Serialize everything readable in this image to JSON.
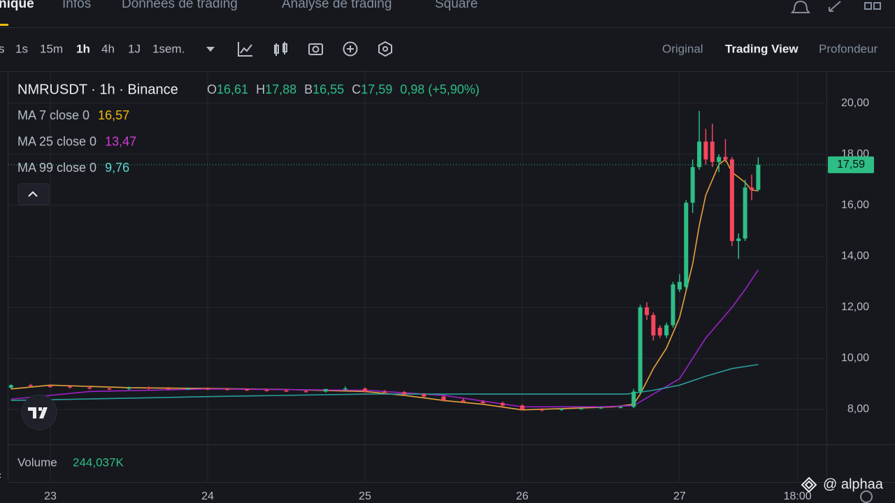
{
  "nav": {
    "tabs": [
      "nique",
      "Infos",
      "Données de trading",
      "Analyse de trading",
      "Square"
    ]
  },
  "toolbar": {
    "intervals": [
      "s",
      "1s",
      "15m",
      "1h",
      "4h",
      "1J",
      "1sem."
    ],
    "views": [
      "Original",
      "Trading View",
      "Profondeur"
    ]
  },
  "legend": {
    "symbol": "NMRUSDT · 1h · Binance",
    "ohlc": [
      {
        "key": "O",
        "value": "16,61"
      },
      {
        "key": "H",
        "value": "17,88"
      },
      {
        "key": "B",
        "value": "16,55"
      },
      {
        "key": "C",
        "value": "17,59"
      }
    ],
    "change": "0,98 (+5,90%)"
  },
  "chart_data": {
    "type": "candlestick",
    "xlim": [
      -6.4,
      118.2
    ],
    "ylim": [
      6.63,
      21.23
    ],
    "xticks": [
      {
        "value": 0,
        "label": "23"
      },
      {
        "value": 24,
        "label": "24"
      },
      {
        "value": 48,
        "label": "25"
      },
      {
        "value": 72,
        "label": "26"
      },
      {
        "value": 96,
        "label": "27"
      },
      {
        "value": 114,
        "label": "18:00"
      }
    ],
    "yticks": [
      {
        "value": 8,
        "label": "8,00"
      },
      {
        "value": 10,
        "label": "10,00"
      },
      {
        "value": 12,
        "label": "12,00"
      },
      {
        "value": 14,
        "label": "14,00"
      },
      {
        "value": 16,
        "label": "16,00"
      },
      {
        "value": 18,
        "label": "18,00"
      },
      {
        "value": 20,
        "label": "20,00"
      }
    ],
    "grid": true,
    "up_color": "#2ebd85",
    "down_color": "#f6465d",
    "x": [
      -6,
      -3,
      0,
      3,
      6,
      9,
      12,
      15,
      18,
      21,
      24,
      27,
      30,
      33,
      36,
      39,
      42,
      45,
      48,
      51,
      54,
      57,
      60,
      63,
      66,
      69,
      72,
      75,
      78,
      81,
      84,
      87,
      89,
      90,
      91,
      92,
      93,
      94,
      95,
      96,
      97,
      98,
      99,
      100,
      101,
      102,
      103,
      104,
      105,
      106,
      107,
      108
    ],
    "open": [
      8.85,
      8.95,
      8.92,
      8.9,
      8.86,
      8.82,
      8.8,
      8.85,
      8.83,
      8.8,
      8.82,
      8.8,
      8.78,
      8.76,
      8.74,
      8.72,
      8.7,
      8.8,
      8.82,
      8.7,
      8.68,
      8.6,
      8.5,
      8.35,
      8.3,
      8.25,
      8.15,
      8.0,
      7.98,
      8.02,
      8.05,
      8.08,
      8.1,
      8.7,
      12.0,
      11.7,
      11.2,
      10.9,
      11.3,
      12.7,
      12.8,
      16.1,
      17.5,
      18.5,
      18.5,
      17.7,
      17.9,
      17.8,
      14.6,
      14.7,
      16.7,
      16.61
    ],
    "high": [
      8.98,
      9.0,
      8.98,
      8.95,
      8.9,
      8.88,
      8.9,
      8.9,
      8.88,
      8.86,
      8.86,
      8.84,
      8.82,
      8.8,
      8.78,
      8.76,
      8.8,
      8.9,
      8.86,
      8.76,
      8.72,
      8.64,
      8.55,
      8.42,
      8.36,
      8.3,
      8.2,
      8.05,
      8.04,
      8.08,
      8.1,
      8.14,
      8.8,
      12.1,
      12.2,
      11.8,
      11.3,
      11.4,
      13.0,
      13.3,
      16.2,
      17.8,
      19.7,
      19.0,
      19.2,
      18.0,
      18.6,
      17.9,
      14.9,
      17.0,
      17.2,
      17.88
    ],
    "low": [
      8.8,
      8.88,
      8.85,
      8.82,
      8.78,
      8.76,
      8.76,
      8.78,
      8.76,
      8.76,
      8.76,
      8.74,
      8.72,
      8.7,
      8.68,
      8.66,
      8.66,
      8.74,
      8.66,
      8.62,
      8.56,
      8.46,
      8.3,
      8.26,
      8.2,
      8.1,
      7.96,
      7.92,
      7.94,
      7.98,
      8.02,
      8.04,
      8.05,
      8.6,
      11.5,
      10.7,
      10.8,
      10.8,
      11.2,
      12.6,
      12.7,
      15.7,
      17.4,
      17.6,
      17.5,
      17.3,
      17.7,
      14.4,
      13.9,
      14.6,
      16.2,
      16.55
    ],
    "close": [
      8.95,
      8.92,
      8.9,
      8.86,
      8.82,
      8.8,
      8.85,
      8.83,
      8.8,
      8.82,
      8.8,
      8.78,
      8.76,
      8.74,
      8.72,
      8.7,
      8.8,
      8.82,
      8.7,
      8.68,
      8.6,
      8.5,
      8.35,
      8.3,
      8.25,
      8.15,
      8.0,
      7.98,
      8.02,
      8.05,
      8.08,
      8.1,
      8.7,
      12.0,
      11.7,
      10.9,
      10.9,
      11.3,
      12.9,
      13.0,
      16.1,
      17.5,
      18.5,
      17.8,
      17.7,
      17.9,
      17.8,
      14.6,
      14.7,
      16.7,
      16.6,
      17.59
    ],
    "last_price": {
      "value": 17.59,
      "label": "17,59"
    },
    "series": [
      {
        "name": "MA 7 close 0",
        "value_label": "16,57",
        "color": "#e8a33d",
        "label_color": "#f0b90b",
        "x": [
          -6,
          0,
          12,
          24,
          36,
          48,
          54,
          60,
          66,
          72,
          78,
          86,
          89,
          90,
          92,
          94,
          96,
          98,
          99,
          100,
          102,
          103,
          104,
          106,
          107,
          108
        ],
        "values": [
          8.8,
          8.95,
          8.85,
          8.82,
          8.78,
          8.7,
          8.55,
          8.35,
          8.2,
          7.98,
          8.03,
          8.1,
          8.2,
          8.6,
          9.6,
          10.4,
          11.6,
          13.7,
          15.2,
          16.4,
          17.6,
          17.8,
          17.3,
          16.9,
          16.6,
          16.57
        ]
      },
      {
        "name": "MA 25 close 0",
        "value_label": "13,47",
        "color": "#a020c8",
        "label_color": "#d63ad6",
        "x": [
          -6,
          6,
          24,
          48,
          60,
          72,
          84,
          89,
          92,
          96,
          100,
          104,
          106,
          108
        ],
        "values": [
          8.4,
          8.7,
          8.8,
          8.75,
          8.55,
          8.1,
          8.1,
          8.15,
          8.6,
          9.2,
          10.8,
          12.0,
          12.7,
          13.47
        ]
      },
      {
        "name": "MA 99 close 0",
        "value_label": "9,76",
        "color": "#2a9d9a",
        "label_color": "#5fd6d0",
        "x": [
          -6,
          24,
          48,
          72,
          88,
          92,
          96,
          100,
          104,
          108
        ],
        "values": [
          8.35,
          8.5,
          8.6,
          8.6,
          8.6,
          8.75,
          8.95,
          9.3,
          9.6,
          9.76
        ]
      }
    ]
  },
  "volume": {
    "label": "Volume",
    "value": "244,037K"
  },
  "watermark": "@ alphaa"
}
